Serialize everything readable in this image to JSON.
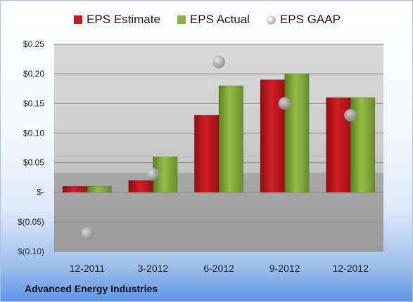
{
  "chart_data": {
    "type": "bar",
    "categories": [
      "12-2011",
      "3-2012",
      "6-2012",
      "9-2012",
      "12-2012"
    ],
    "series": [
      {
        "name": "EPS Estimate",
        "type": "bar",
        "color": "#c8191f",
        "values": [
          0.01,
          0.02,
          0.13,
          0.19,
          0.16
        ]
      },
      {
        "name": "EPS Actual",
        "type": "bar",
        "color": "#8ab33c",
        "values": [
          0.01,
          0.06,
          0.18,
          0.2,
          0.16
        ]
      },
      {
        "name": "EPS GAAP",
        "type": "scatter",
        "color": "#a9acb2",
        "values": [
          -0.07,
          0.03,
          0.22,
          0.15,
          0.13
        ]
      }
    ],
    "ylim": [
      -0.1,
      0.25
    ],
    "yticks": [
      {
        "value": 0.25,
        "label": "$0.25"
      },
      {
        "value": 0.2,
        "label": "$0.20"
      },
      {
        "value": 0.15,
        "label": "$0.15"
      },
      {
        "value": 0.1,
        "label": "$0.10"
      },
      {
        "value": 0.05,
        "label": "$0.05"
      },
      {
        "value": 0.0,
        "label": "$-"
      },
      {
        "value": -0.05,
        "label": "$(0.05)"
      },
      {
        "value": -0.1,
        "label": "$(0.10)"
      }
    ],
    "grid": true,
    "legend_position": "top"
  },
  "company": "Advanced Energy Industries"
}
